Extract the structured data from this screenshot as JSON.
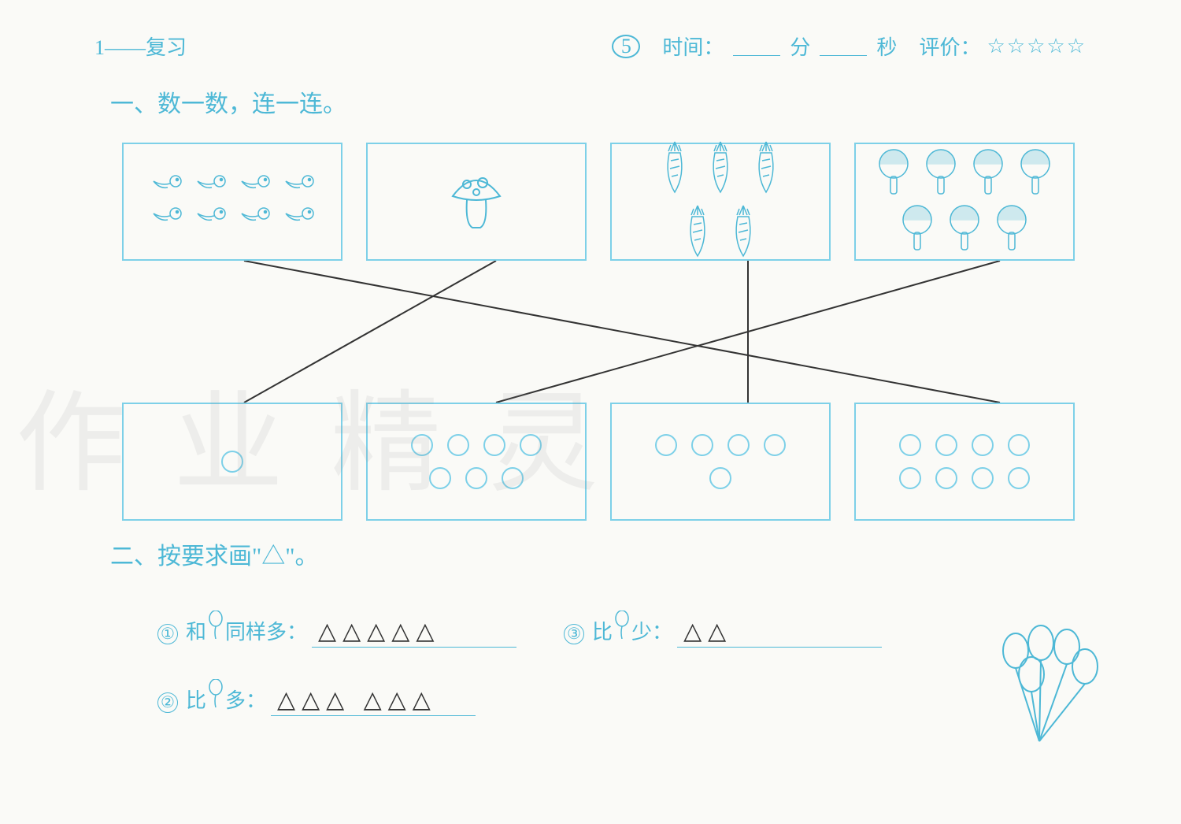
{
  "header": {
    "chapter": "1——复习",
    "page_number": "5",
    "time_label": "时间：",
    "minute_label": "分",
    "second_label": "秒",
    "rating_label": "评价：",
    "stars": "☆☆☆☆☆"
  },
  "section1": {
    "title": "一、数一数，连一连。",
    "top_boxes": [
      {
        "name": "tadpoles",
        "count": 8,
        "rows": [
          4,
          4
        ]
      },
      {
        "name": "mushroom",
        "count": 1,
        "rows": [
          1
        ]
      },
      {
        "name": "carrots",
        "count": 5,
        "rows": [
          3,
          2
        ]
      },
      {
        "name": "paddles",
        "count": 7,
        "rows": [
          4,
          3
        ]
      }
    ],
    "bottom_boxes": [
      {
        "name": "circles-1",
        "count": 1,
        "rows": [
          1
        ]
      },
      {
        "name": "circles-7",
        "count": 7,
        "rows": [
          4,
          3
        ]
      },
      {
        "name": "circles-5",
        "count": 5,
        "rows": [
          4,
          1
        ]
      },
      {
        "name": "circles-8",
        "count": 8,
        "rows": [
          4,
          4
        ]
      }
    ],
    "connections": [
      {
        "from": 0,
        "to": 3
      },
      {
        "from": 1,
        "to": 0
      },
      {
        "from": 2,
        "to": 2
      },
      {
        "from": 3,
        "to": 1
      }
    ],
    "line_color": "#333333",
    "box_border_color": "#7dd0e8",
    "icon_color": "#4db8d6"
  },
  "section2": {
    "title": "二、按要求画\"△\"。",
    "balloon_count": 5,
    "questions": [
      {
        "num": "①",
        "text_before": "和",
        "text_after": "同样多：",
        "answer": "△△△△△"
      },
      {
        "num": "②",
        "text_before": "比",
        "text_after": "多：",
        "answer": "△△△ △△△"
      },
      {
        "num": "③",
        "text_before": "比",
        "text_after": "少：",
        "answer": "△△"
      }
    ]
  },
  "colors": {
    "primary": "#4db8d6",
    "border": "#7dd0e8",
    "pencil": "#333333",
    "background": "#fafaf7"
  },
  "watermark_text": "作业精灵"
}
